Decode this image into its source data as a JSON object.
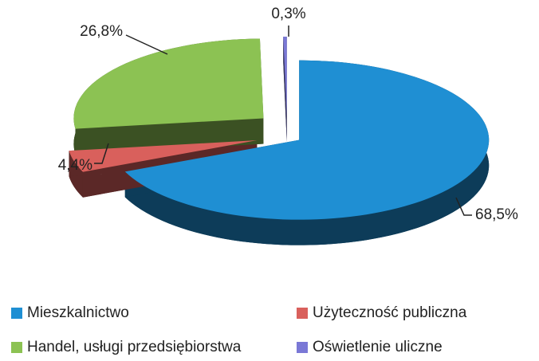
{
  "chart_data": {
    "type": "pie3d",
    "categories": [
      "Mieszkalnictwo",
      "Użyteczność publiczna",
      "Handel, usługi przedsiębiorstwa",
      "Oświetlenie uliczne"
    ],
    "values": [
      68.5,
      4.4,
      26.8,
      0.3
    ],
    "value_labels": [
      "68,5%",
      "4,4%",
      "26,8%",
      "0,3%"
    ],
    "colors": [
      "#1f8fd3",
      "#d9605c",
      "#8cc253",
      "#7a78d6"
    ],
    "legend": "bottom"
  }
}
